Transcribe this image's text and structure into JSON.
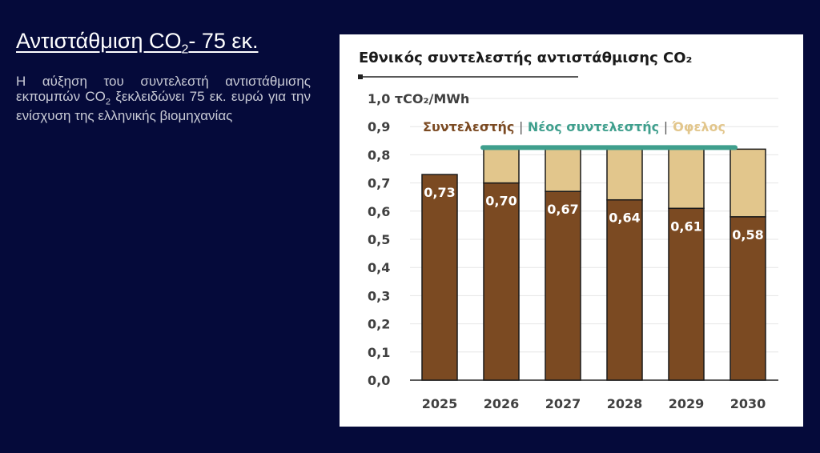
{
  "slide": {
    "title_main": "Αντιστάθμιση CO",
    "title_sub": "2",
    "title_tail": "- 75 εκ.",
    "body_part1": "Η αύξηση του συντελεστή αντιστάθμισης εκπομπών CO",
    "body_sub": "2",
    "body_part2": " ξεκλειδώνει 75 εκ. ευρώ για την ενίσχυση της ελληνικής βιομηχανίας"
  },
  "colors": {
    "background": "#050a3a",
    "coefficient": "#7b4a22",
    "new_coefficient": "#3f9f8d",
    "benefit": "#e2c68c"
  },
  "chart_data": {
    "type": "bar",
    "title": "Εθνικός συντελεστής αντιστάθμισης CO₂",
    "ylabel_unit": "τCO₂/MWh",
    "ylim": [
      0,
      1.0
    ],
    "y_ticks": [
      "0,0",
      "0,1",
      "0,2",
      "0,3",
      "0,4",
      "0,5",
      "0,6",
      "0,7",
      "0,8",
      "0,9",
      "1,0"
    ],
    "categories": [
      "2025",
      "2026",
      "2027",
      "2028",
      "2029",
      "2030"
    ],
    "legend": [
      "Συντελεστής",
      "Νέος συντελεστής",
      "Όφελος"
    ],
    "legend_separator": "|",
    "series": [
      {
        "name": "Συντελεστής",
        "values": [
          0.73,
          0.7,
          0.67,
          0.64,
          0.61,
          0.58
        ],
        "labels": [
          "0,73",
          "0,70",
          "0,67",
          "0,64",
          "0,61",
          "0,58"
        ]
      },
      {
        "name": "Όφελος",
        "values": [
          0,
          0.12,
          0.15,
          0.18,
          0.21,
          0.24
        ]
      }
    ],
    "new_coefficient": {
      "name": "Νέος συντελεστής",
      "value": 0.82,
      "from": "2026",
      "to": "2030"
    }
  }
}
